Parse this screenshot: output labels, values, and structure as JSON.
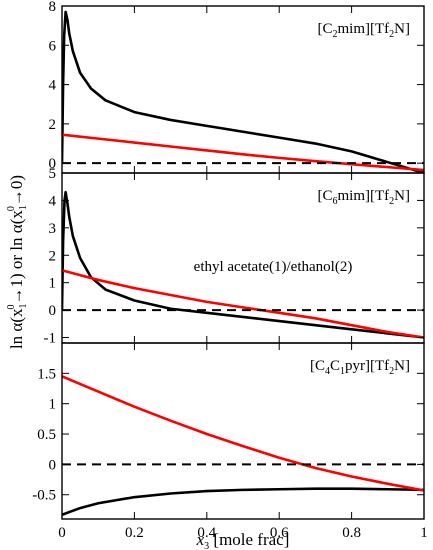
{
  "figure": {
    "xlabel": {
      "main": "x",
      "sub": "3",
      "rest": " [mole frac]"
    },
    "ylabel": {
      "p1": "ln α(x",
      "p1sub": "1",
      "p1sup": "0",
      "p2": "→1)  or  ln α(x",
      "p2sub": "1",
      "p2sup": "0",
      "p3": "→0)"
    },
    "mixture_label": "ethyl acetate(1)/ethanol(2)"
  },
  "chart_data": [
    {
      "type": "line",
      "panel": "top",
      "annotation": {
        "pre": "[C",
        "sub1": "2",
        "mid": "mim][Tf",
        "sub2": "2",
        "post": "N]"
      },
      "xlim": [
        0,
        1
      ],
      "ylim": [
        -0.5,
        8
      ],
      "x_ticks": [
        0,
        0.2,
        0.4,
        0.6,
        0.8,
        1
      ],
      "y_ticks": [
        0,
        2,
        4,
        6,
        8
      ],
      "y_tick_labels": [
        "0",
        "2",
        "4",
        "6",
        "8"
      ],
      "series": [
        {
          "color": "#000000",
          "style": "solid",
          "points": [
            [
              0,
              0.0
            ],
            [
              0.003,
              4.0
            ],
            [
              0.006,
              6.5
            ],
            [
              0.01,
              7.7
            ],
            [
              0.015,
              7.3
            ],
            [
              0.02,
              6.6
            ],
            [
              0.03,
              5.7
            ],
            [
              0.05,
              4.6
            ],
            [
              0.08,
              3.8
            ],
            [
              0.12,
              3.2
            ],
            [
              0.2,
              2.6
            ],
            [
              0.3,
              2.2
            ],
            [
              0.4,
              1.9
            ],
            [
              0.5,
              1.6
            ],
            [
              0.6,
              1.3
            ],
            [
              0.7,
              1.0
            ],
            [
              0.8,
              0.6
            ],
            [
              0.9,
              0.05
            ],
            [
              1.0,
              -0.5
            ]
          ]
        },
        {
          "color": "#ff0000",
          "style": "solid",
          "points": [
            [
              0,
              1.45
            ],
            [
              0.1,
              1.25
            ],
            [
              0.2,
              1.05
            ],
            [
              0.3,
              0.85
            ],
            [
              0.4,
              0.65
            ],
            [
              0.5,
              0.45
            ],
            [
              0.6,
              0.27
            ],
            [
              0.7,
              0.1
            ],
            [
              0.8,
              -0.05
            ],
            [
              0.9,
              -0.2
            ],
            [
              1.0,
              -0.35
            ]
          ]
        },
        {
          "color": "#000000",
          "style": "dashed",
          "points": [
            [
              0,
              0
            ],
            [
              1,
              0
            ]
          ]
        }
      ]
    },
    {
      "type": "line",
      "panel": "middle",
      "annotation": {
        "pre": "[C",
        "sub1": "6",
        "mid": "mim][Tf",
        "sub2": "2",
        "post": "N]"
      },
      "xlim": [
        0,
        1
      ],
      "ylim": [
        -1.2,
        5
      ],
      "x_ticks": [
        0,
        0.2,
        0.4,
        0.6,
        0.8,
        1
      ],
      "y_ticks": [
        -1,
        0,
        1,
        2,
        3,
        4,
        5
      ],
      "y_tick_labels": [
        "-1",
        "0",
        "1",
        "2",
        "3",
        "4",
        "5"
      ],
      "series": [
        {
          "color": "#000000",
          "style": "solid",
          "points": [
            [
              0,
              0.0
            ],
            [
              0.003,
              2.5
            ],
            [
              0.007,
              4.0
            ],
            [
              0.01,
              4.3
            ],
            [
              0.015,
              3.9
            ],
            [
              0.02,
              3.4
            ],
            [
              0.03,
              2.7
            ],
            [
              0.05,
              1.9
            ],
            [
              0.08,
              1.2
            ],
            [
              0.12,
              0.75
            ],
            [
              0.2,
              0.35
            ],
            [
              0.3,
              0.05
            ],
            [
              0.4,
              -0.1
            ],
            [
              0.5,
              -0.25
            ],
            [
              0.6,
              -0.4
            ],
            [
              0.7,
              -0.55
            ],
            [
              0.8,
              -0.7
            ],
            [
              0.9,
              -0.85
            ],
            [
              1.0,
              -1.0
            ]
          ]
        },
        {
          "color": "#ff0000",
          "style": "solid",
          "points": [
            [
              0,
              1.45
            ],
            [
              0.1,
              1.1
            ],
            [
              0.2,
              0.8
            ],
            [
              0.3,
              0.55
            ],
            [
              0.4,
              0.3
            ],
            [
              0.5,
              0.1
            ],
            [
              0.6,
              -0.1
            ],
            [
              0.7,
              -0.3
            ],
            [
              0.8,
              -0.55
            ],
            [
              0.9,
              -0.8
            ],
            [
              1.0,
              -1.0
            ]
          ]
        },
        {
          "color": "#000000",
          "style": "dashed",
          "points": [
            [
              0,
              0
            ],
            [
              1,
              0
            ]
          ]
        }
      ]
    },
    {
      "type": "line",
      "panel": "bottom",
      "annotation": {
        "pre": "[C",
        "sub1": "4",
        "mid": "C",
        "sub2": "1",
        "post": "pyr][Tf",
        "sub3": "2",
        "post2": "N]"
      },
      "xlim": [
        0,
        1
      ],
      "ylim": [
        -0.9,
        2.0
      ],
      "x_ticks": [
        0,
        0.2,
        0.4,
        0.6,
        0.8,
        1
      ],
      "x_tick_labels": [
        "0",
        "0.2",
        "0.4",
        "0.6",
        "0.8",
        "1"
      ],
      "y_ticks": [
        -0.5,
        0,
        0.5,
        1,
        1.5
      ],
      "y_tick_labels": [
        "-0.5",
        "0",
        "0.5",
        "1",
        "1.5"
      ],
      "series": [
        {
          "color": "#000000",
          "style": "solid",
          "points": [
            [
              0,
              -0.83
            ],
            [
              0.05,
              -0.72
            ],
            [
              0.1,
              -0.64
            ],
            [
              0.2,
              -0.54
            ],
            [
              0.3,
              -0.48
            ],
            [
              0.4,
              -0.44
            ],
            [
              0.5,
              -0.42
            ],
            [
              0.6,
              -0.41
            ],
            [
              0.7,
              -0.4
            ],
            [
              0.8,
              -0.4
            ],
            [
              0.9,
              -0.41
            ],
            [
              1.0,
              -0.42
            ]
          ]
        },
        {
          "color": "#ff0000",
          "style": "solid",
          "points": [
            [
              0,
              1.45
            ],
            [
              0.1,
              1.2
            ],
            [
              0.2,
              0.95
            ],
            [
              0.3,
              0.72
            ],
            [
              0.4,
              0.5
            ],
            [
              0.5,
              0.3
            ],
            [
              0.6,
              0.11
            ],
            [
              0.7,
              -0.06
            ],
            [
              0.8,
              -0.2
            ],
            [
              0.9,
              -0.32
            ],
            [
              1.0,
              -0.43
            ]
          ]
        },
        {
          "color": "#000000",
          "style": "dashed",
          "points": [
            [
              0,
              0
            ],
            [
              1,
              0
            ]
          ]
        }
      ]
    }
  ]
}
